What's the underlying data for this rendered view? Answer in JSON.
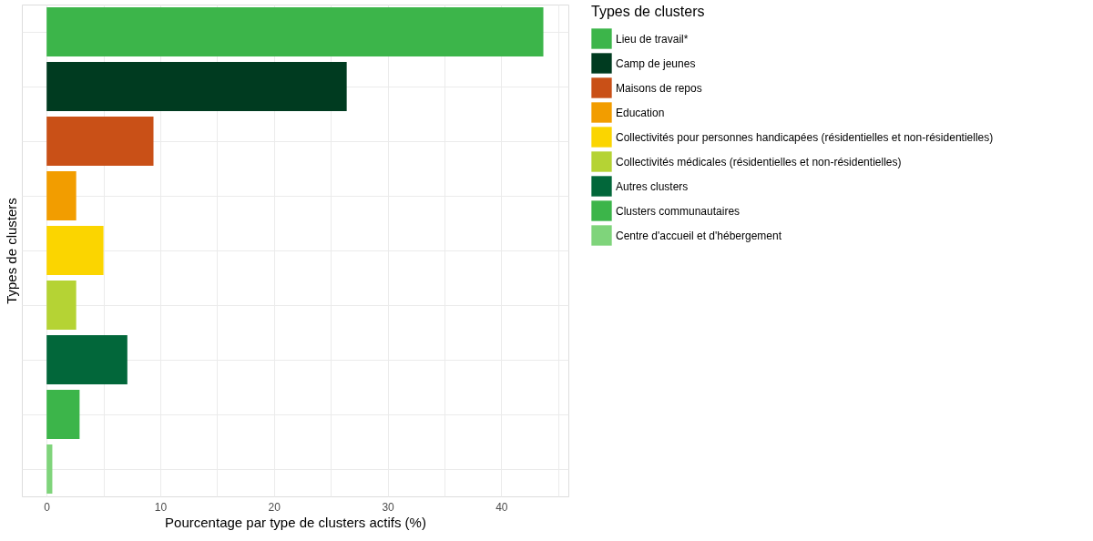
{
  "chart_data": {
    "type": "bar",
    "orientation": "horizontal",
    "xlabel": "Pourcentage par type de clusters actifs (%)",
    "ylabel": "Types de clusters",
    "legend_title": "Types de clusters",
    "categories": [
      null,
      null,
      null,
      null,
      null,
      null,
      null,
      null,
      null
    ],
    "series": [
      {
        "name": "Lieu de travail*",
        "color": "#3cb54a",
        "values": [
          43.7,
          null,
          null,
          null,
          null,
          null,
          null,
          null,
          null
        ]
      },
      {
        "name": "Camp de jeunes",
        "color": "#003b20",
        "values": [
          null,
          26.4,
          null,
          null,
          null,
          null,
          null,
          null,
          null
        ]
      },
      {
        "name": "Maisons de repos",
        "color": "#c95017",
        "values": [
          null,
          null,
          9.4,
          null,
          null,
          null,
          null,
          null,
          null
        ]
      },
      {
        "name": "Education",
        "color": "#f29d00",
        "values": [
          null,
          null,
          null,
          2.6,
          null,
          null,
          null,
          null,
          null
        ]
      },
      {
        "name": "Collectivités pour personnes handicapées (résidentielles et non-résidentielles)",
        "color": "#fbd500",
        "values": [
          null,
          null,
          null,
          null,
          5.0,
          null,
          null,
          null,
          null
        ]
      },
      {
        "name": "Collectivités médicales (résidentielles et non-résidentielles)",
        "color": "#b5d334",
        "values": [
          null,
          null,
          null,
          null,
          null,
          2.6,
          null,
          null,
          null
        ]
      },
      {
        "name": "Autres clusters",
        "color": "#02673a",
        "values": [
          null,
          null,
          null,
          null,
          null,
          null,
          7.1,
          null,
          null
        ]
      },
      {
        "name": "Clusters communautaires",
        "color": "#3cb54a",
        "values": [
          null,
          null,
          null,
          null,
          null,
          null,
          null,
          2.9,
          null
        ]
      },
      {
        "name": "Centre d'accueil et d'hébergement",
        "color": "#7fd47b",
        "values": [
          null,
          null,
          null,
          null,
          null,
          null,
          null,
          null,
          0.5
        ]
      }
    ],
    "xlim": [
      -2.18,
      45.9
    ],
    "xticks": [
      0,
      {
        "value": 5,
        "label": null
      },
      10,
      {
        "value": 15,
        "label": null
      },
      20,
      {
        "value": 25,
        "label": null
      },
      30,
      {
        "value": 35,
        "label": null
      },
      40,
      {
        "value": 45,
        "label": null
      }
    ],
    "grid": true,
    "legend": "right",
    "tick_labels": "x"
  }
}
